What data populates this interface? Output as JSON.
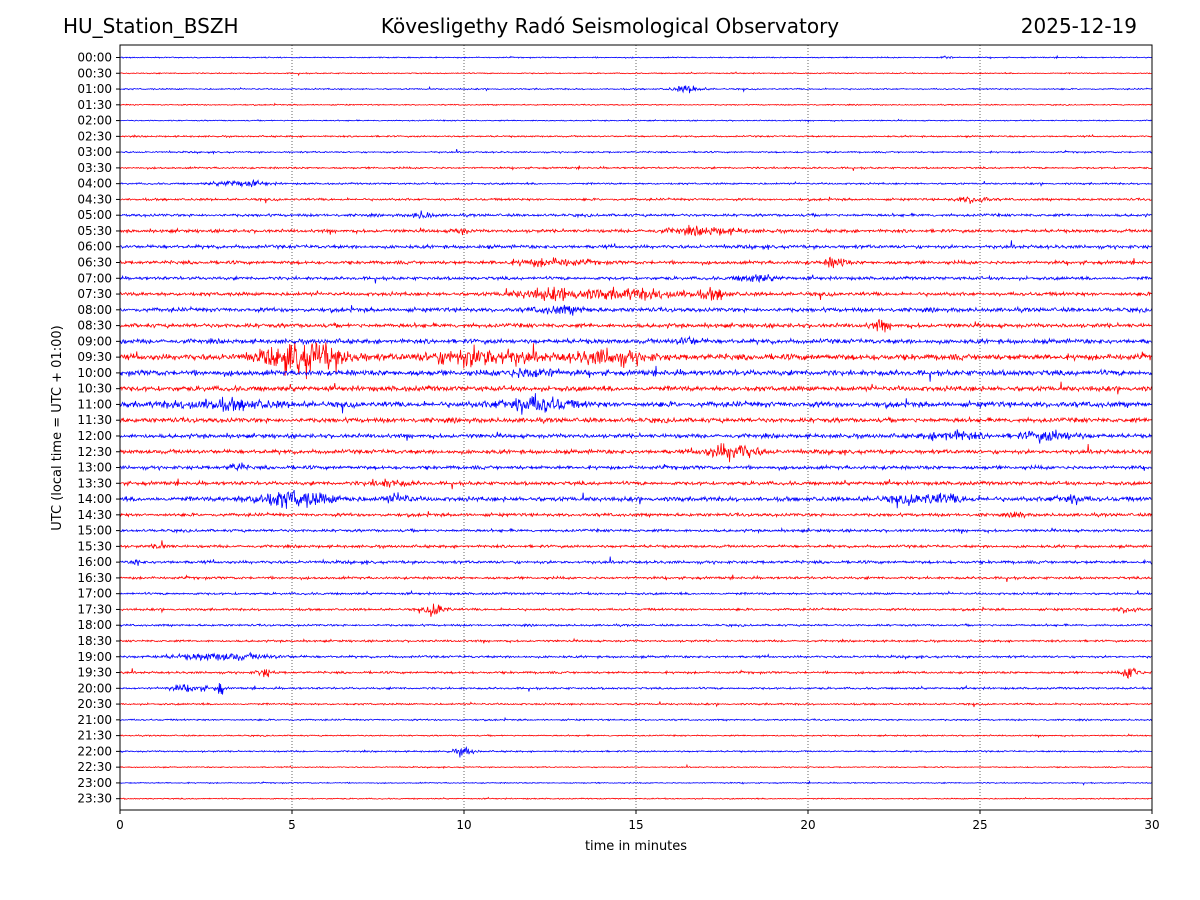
{
  "header": {
    "station": "HU_Station_BSZH",
    "observatory": "Kövesligethy Radó Seismological Observatory",
    "date": "2025-12-19"
  },
  "chart_data": {
    "type": "line",
    "title": "Kövesligethy Radó Seismological Observatory",
    "xlabel": "time in minutes",
    "ylabel": "UTC (local time = UTC + 01:00)",
    "xlim": [
      0,
      30
    ],
    "x_ticks": [
      0,
      5,
      10,
      15,
      20,
      25,
      30
    ],
    "x_tick_labels": [
      "0",
      "5",
      "10",
      "15",
      "20",
      "25",
      "30"
    ],
    "grid": "vertical dotted at 5-minute ticks",
    "colors": [
      "#0000ff",
      "#ff0000"
    ],
    "row_labels": [
      "00:00",
      "00:30",
      "01:00",
      "01:30",
      "02:00",
      "02:30",
      "03:00",
      "03:30",
      "04:00",
      "04:30",
      "05:00",
      "05:30",
      "06:00",
      "06:30",
      "07:00",
      "07:30",
      "08:00",
      "08:30",
      "09:00",
      "09:30",
      "10:00",
      "10:30",
      "11:00",
      "11:30",
      "12:00",
      "12:30",
      "13:00",
      "13:30",
      "14:00",
      "14:30",
      "15:00",
      "15:30",
      "16:00",
      "16:30",
      "17:00",
      "17:30",
      "18:00",
      "18:30",
      "19:00",
      "19:30",
      "20:00",
      "20:30",
      "21:00",
      "21:30",
      "22:00",
      "22:30",
      "23:00",
      "23:30"
    ],
    "noise_levels": [
      0.5,
      0.5,
      0.6,
      0.5,
      0.5,
      0.7,
      0.7,
      0.8,
      0.8,
      1.0,
      1.2,
      1.4,
      1.5,
      1.5,
      1.4,
      1.6,
      1.8,
      1.8,
      2.0,
      2.6,
      2.4,
      2.2,
      2.4,
      2.0,
      1.8,
      1.8,
      1.6,
      1.6,
      2.0,
      1.4,
      1.2,
      1.2,
      1.3,
      1.1,
      1.0,
      1.0,
      0.9,
      0.9,
      1.0,
      1.0,
      0.9,
      0.8,
      0.7,
      0.6,
      0.7,
      0.5,
      0.5,
      0.5
    ],
    "events": [
      {
        "row": 0,
        "t": 24.0,
        "amp": 2,
        "dur": 0.2
      },
      {
        "row": 2,
        "t": 16.5,
        "amp": 3,
        "dur": 0.6
      },
      {
        "row": 8,
        "t": 3.5,
        "amp": 3,
        "dur": 1.0
      },
      {
        "row": 9,
        "t": 24.8,
        "amp": 3,
        "dur": 0.6
      },
      {
        "row": 10,
        "t": 8.8,
        "amp": 3,
        "dur": 0.4
      },
      {
        "row": 11,
        "t": 9.9,
        "amp": 3,
        "dur": 0.3
      },
      {
        "row": 11,
        "t": 17.0,
        "amp": 3,
        "dur": 1.5
      },
      {
        "row": 13,
        "t": 12.5,
        "amp": 3,
        "dur": 1.5
      },
      {
        "row": 13,
        "t": 20.8,
        "amp": 5,
        "dur": 0.4
      },
      {
        "row": 14,
        "t": 18.5,
        "amp": 3,
        "dur": 0.8
      },
      {
        "row": 15,
        "t": 12.5,
        "amp": 4,
        "dur": 1.5
      },
      {
        "row": 15,
        "t": 15.0,
        "amp": 4,
        "dur": 2.5
      },
      {
        "row": 15,
        "t": 17.3,
        "amp": 4,
        "dur": 0.5
      },
      {
        "row": 16,
        "t": 12.8,
        "amp": 3,
        "dur": 1.0
      },
      {
        "row": 17,
        "t": 22.1,
        "amp": 4,
        "dur": 0.4
      },
      {
        "row": 18,
        "t": 16.5,
        "amp": 3,
        "dur": 0.5
      },
      {
        "row": 19,
        "t": 5.4,
        "amp": 14,
        "dur": 1.6
      },
      {
        "row": 19,
        "t": 10.5,
        "amp": 8,
        "dur": 2.0
      },
      {
        "row": 19,
        "t": 14.2,
        "amp": 6,
        "dur": 1.5
      },
      {
        "row": 20,
        "t": 12.0,
        "amp": 4,
        "dur": 1.0
      },
      {
        "row": 22,
        "t": 3.0,
        "amp": 4,
        "dur": 2.0
      },
      {
        "row": 22,
        "t": 12.0,
        "amp": 7,
        "dur": 1.4
      },
      {
        "row": 24,
        "t": 24.2,
        "amp": 4,
        "dur": 1.0
      },
      {
        "row": 24,
        "t": 27.0,
        "amp": 4,
        "dur": 1.2
      },
      {
        "row": 25,
        "t": 17.8,
        "amp": 7,
        "dur": 1.0
      },
      {
        "row": 26,
        "t": 3.4,
        "amp": 4,
        "dur": 0.3
      },
      {
        "row": 27,
        "t": 7.8,
        "amp": 3,
        "dur": 0.8
      },
      {
        "row": 28,
        "t": 5.0,
        "amp": 7,
        "dur": 1.6
      },
      {
        "row": 28,
        "t": 8.1,
        "amp": 4,
        "dur": 0.5
      },
      {
        "row": 28,
        "t": 23.5,
        "amp": 4,
        "dur": 1.5
      },
      {
        "row": 28,
        "t": 27.6,
        "amp": 4,
        "dur": 0.6
      },
      {
        "row": 29,
        "t": 26.1,
        "amp": 4,
        "dur": 0.2
      },
      {
        "row": 31,
        "t": 1.2,
        "amp": 3,
        "dur": 0.3
      },
      {
        "row": 32,
        "t": 0.5,
        "amp": 4,
        "dur": 0.1
      },
      {
        "row": 35,
        "t": 9.2,
        "amp": 6,
        "dur": 0.4
      },
      {
        "row": 35,
        "t": 29.3,
        "amp": 3,
        "dur": 0.4
      },
      {
        "row": 38,
        "t": 3.0,
        "amp": 3,
        "dur": 2.0
      },
      {
        "row": 39,
        "t": 4.2,
        "amp": 4,
        "dur": 0.3
      },
      {
        "row": 39,
        "t": 29.4,
        "amp": 7,
        "dur": 0.3
      },
      {
        "row": 40,
        "t": 2.0,
        "amp": 3,
        "dur": 0.8
      },
      {
        "row": 40,
        "t": 2.9,
        "amp": 7,
        "dur": 0.15
      },
      {
        "row": 44,
        "t": 10.0,
        "amp": 4,
        "dur": 0.4
      }
    ]
  }
}
